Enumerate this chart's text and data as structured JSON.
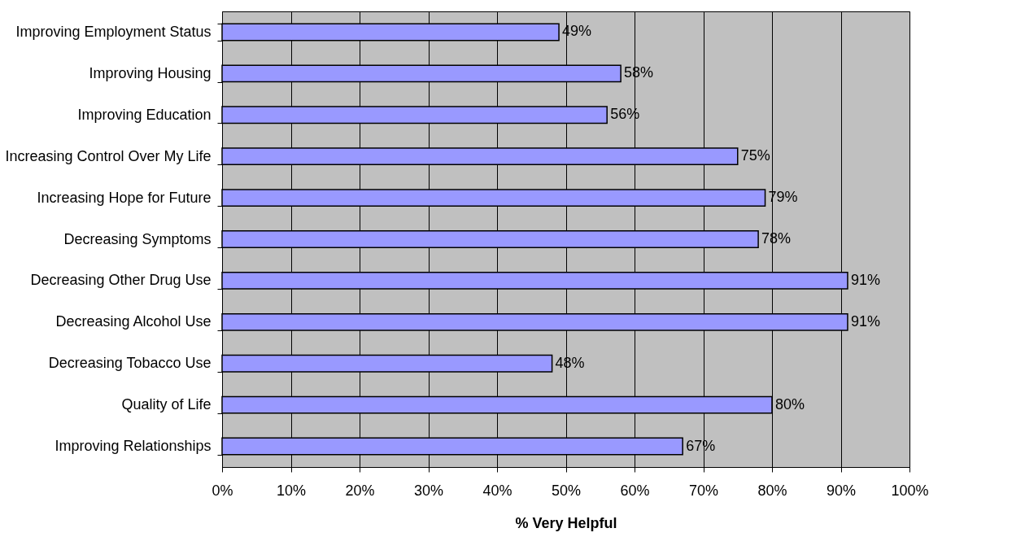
{
  "chart_data": {
    "type": "bar",
    "orientation": "horizontal",
    "xlabel": "% Very Helpful",
    "categories": [
      "Improving Employment Status",
      "Improving Housing",
      "Improving Education",
      "Increasing Control Over My Life",
      "Increasing Hope for Future",
      "Decreasing Symptoms",
      "Decreasing Other Drug Use",
      "Decreasing Alcohol Use",
      "Decreasing Tobacco Use",
      "Quality of Life",
      "Improving Relationships"
    ],
    "values": [
      49,
      58,
      56,
      75,
      79,
      78,
      91,
      91,
      48,
      80,
      67
    ],
    "value_labels": [
      "49%",
      "58%",
      "56%",
      "75%",
      "79%",
      "78%",
      "91%",
      "91%",
      "48%",
      "80%",
      "67%"
    ],
    "color": "#9999ff",
    "xlim": [
      0,
      100
    ],
    "xticks": [
      {
        "value": 0,
        "label": "0%"
      },
      {
        "value": 10,
        "label": "10%"
      },
      {
        "value": 20,
        "label": "20%"
      },
      {
        "value": 30,
        "label": "30%"
      },
      {
        "value": 40,
        "label": "40%"
      },
      {
        "value": 50,
        "label": "50%"
      },
      {
        "value": 60,
        "label": "60%"
      },
      {
        "value": 70,
        "label": "70%"
      },
      {
        "value": 80,
        "label": "80%"
      },
      {
        "value": 90,
        "label": "90%"
      },
      {
        "value": 100,
        "label": "100%"
      }
    ],
    "grid": "x"
  }
}
